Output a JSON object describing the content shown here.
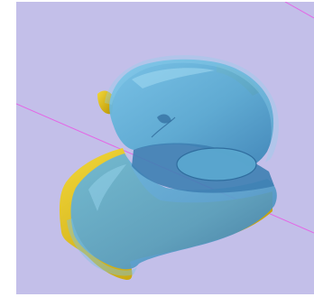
{
  "scene": {
    "background_color": "#c3bfe9",
    "axis_line_color": "#e466e6",
    "mesh_primary_color": "#5aaed4",
    "mesh_highlight_color": "#7cc6e6",
    "mesh_shadow_color": "#3d7fb0",
    "mesh_secondary_color": "#e0c21c",
    "mesh_secondary_shadow": "#b99700"
  }
}
